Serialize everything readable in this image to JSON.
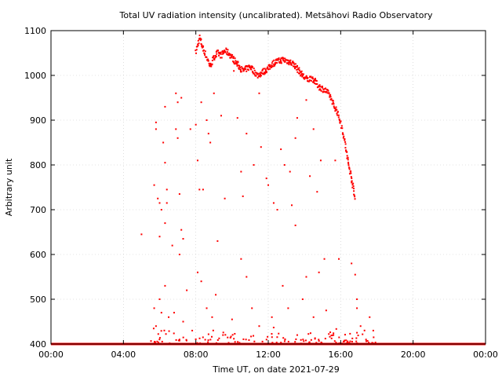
{
  "chart_data": {
    "type": "scatter",
    "title": "Total UV radiation intensity (uncalibrated). Metsähovi Radio Observatory",
    "xlabel": "Time UT, on date 2021-07-29",
    "ylabel": "Arbitrary unit",
    "xlim": [
      0,
      24
    ],
    "ylim": [
      400,
      1100
    ],
    "x_ticks": [
      0,
      4,
      8,
      12,
      16,
      20,
      24
    ],
    "x_tick_labels": [
      "00:00",
      "04:00",
      "08:00",
      "12:00",
      "16:00",
      "20:00",
      "00:00"
    ],
    "y_ticks": [
      400,
      500,
      600,
      700,
      800,
      900,
      1000,
      1100
    ],
    "y_tick_labels": [
      "400",
      "500",
      "600",
      "700",
      "800",
      "900",
      "1000",
      "1100"
    ],
    "grid": true,
    "marker_color": "#ff0000",
    "series": [
      {
        "envelope": [
          [
            8.0,
            1050
          ],
          [
            8.2,
            1085
          ],
          [
            8.4,
            1060
          ],
          [
            8.6,
            1040
          ],
          [
            8.8,
            1020
          ],
          [
            9.0,
            1040
          ],
          [
            9.2,
            1050
          ],
          [
            9.4,
            1045
          ],
          [
            9.6,
            1055
          ],
          [
            9.8,
            1050
          ],
          [
            10.0,
            1040
          ],
          [
            10.2,
            1030
          ],
          [
            10.4,
            1020
          ],
          [
            10.6,
            1010
          ],
          [
            10.8,
            1015
          ],
          [
            11.0,
            1020
          ],
          [
            11.2,
            1010
          ],
          [
            11.4,
            1000
          ],
          [
            11.6,
            1005
          ],
          [
            11.8,
            1010
          ],
          [
            12.0,
            1015
          ],
          [
            12.2,
            1025
          ],
          [
            12.4,
            1030
          ],
          [
            12.6,
            1032
          ],
          [
            12.8,
            1035
          ],
          [
            13.0,
            1033
          ],
          [
            13.2,
            1030
          ],
          [
            13.4,
            1025
          ],
          [
            13.6,
            1015
          ],
          [
            13.8,
            1005
          ],
          [
            14.0,
            995
          ],
          [
            14.2,
            990
          ],
          [
            14.4,
            995
          ],
          [
            14.6,
            985
          ],
          [
            14.8,
            975
          ],
          [
            15.0,
            970
          ],
          [
            15.2,
            965
          ],
          [
            15.4,
            955
          ],
          [
            15.6,
            935
          ],
          [
            15.8,
            920
          ],
          [
            16.0,
            895
          ],
          [
            16.2,
            860
          ],
          [
            16.35,
            820
          ],
          [
            16.5,
            790
          ],
          [
            16.65,
            760
          ],
          [
            16.8,
            720
          ]
        ],
        "outliers": [
          [
            5.0,
            645
          ],
          [
            5.7,
            755
          ],
          [
            5.8,
            880
          ],
          [
            5.8,
            895
          ],
          [
            5.9,
            725
          ],
          [
            6.0,
            640
          ],
          [
            6.0,
            715
          ],
          [
            6.1,
            700
          ],
          [
            6.2,
            850
          ],
          [
            6.3,
            930
          ],
          [
            6.3,
            805
          ],
          [
            6.3,
            670
          ],
          [
            6.4,
            715
          ],
          [
            6.4,
            745
          ],
          [
            6.7,
            620
          ],
          [
            6.9,
            960
          ],
          [
            6.9,
            880
          ],
          [
            7.0,
            940
          ],
          [
            7.0,
            860
          ],
          [
            7.1,
            735
          ],
          [
            7.1,
            600
          ],
          [
            7.2,
            950
          ],
          [
            7.2,
            655
          ],
          [
            7.3,
            635
          ],
          [
            7.5,
            520
          ],
          [
            7.7,
            880
          ],
          [
            8.0,
            890
          ],
          [
            8.1,
            810
          ],
          [
            8.2,
            745
          ],
          [
            8.3,
            940
          ],
          [
            8.4,
            745
          ],
          [
            8.6,
            900
          ],
          [
            8.7,
            870
          ],
          [
            8.8,
            850
          ],
          [
            9.0,
            960
          ],
          [
            9.2,
            630
          ],
          [
            9.4,
            910
          ],
          [
            9.6,
            725
          ],
          [
            10.1,
            1010
          ],
          [
            10.3,
            905
          ],
          [
            10.5,
            785
          ],
          [
            10.6,
            730
          ],
          [
            10.8,
            870
          ],
          [
            11.2,
            800
          ],
          [
            11.5,
            960
          ],
          [
            11.6,
            840
          ],
          [
            11.9,
            770
          ],
          [
            12.0,
            755
          ],
          [
            12.3,
            715
          ],
          [
            12.5,
            700
          ],
          [
            12.7,
            835
          ],
          [
            12.9,
            800
          ],
          [
            13.2,
            785
          ],
          [
            13.3,
            710
          ],
          [
            13.5,
            665
          ],
          [
            13.5,
            860
          ],
          [
            13.6,
            905
          ],
          [
            14.1,
            945
          ],
          [
            14.3,
            775
          ],
          [
            14.5,
            880
          ],
          [
            14.7,
            740
          ],
          [
            14.9,
            810
          ],
          [
            15.1,
            590
          ],
          [
            15.7,
            810
          ],
          [
            15.9,
            590
          ],
          [
            16.6,
            580
          ],
          [
            16.8,
            555
          ],
          [
            16.9,
            500
          ]
        ],
        "low_scatter": [
          [
            5.7,
            480
          ],
          [
            5.8,
            440
          ],
          [
            6.0,
            500
          ],
          [
            6.1,
            470
          ],
          [
            6.3,
            530
          ],
          [
            6.5,
            460
          ],
          [
            6.8,
            470
          ],
          [
            7.1,
            410
          ],
          [
            7.3,
            450
          ],
          [
            7.8,
            430
          ],
          [
            8.1,
            560
          ],
          [
            8.3,
            540
          ],
          [
            8.6,
            480
          ],
          [
            8.9,
            460
          ],
          [
            9.1,
            510
          ],
          [
            9.5,
            420
          ],
          [
            10.0,
            455
          ],
          [
            10.5,
            590
          ],
          [
            10.8,
            550
          ],
          [
            11.1,
            480
          ],
          [
            11.5,
            440
          ],
          [
            12.2,
            460
          ],
          [
            12.8,
            530
          ],
          [
            13.1,
            480
          ],
          [
            13.6,
            420
          ],
          [
            13.9,
            500
          ],
          [
            14.1,
            550
          ],
          [
            14.5,
            460
          ],
          [
            14.8,
            560
          ],
          [
            15.2,
            475
          ],
          [
            15.6,
            420
          ],
          [
            16.9,
            480
          ],
          [
            17.1,
            440
          ],
          [
            17.4,
            410
          ],
          [
            17.6,
            460
          ],
          [
            17.8,
            430
          ]
        ],
        "baseline_value": 400
      }
    ]
  }
}
